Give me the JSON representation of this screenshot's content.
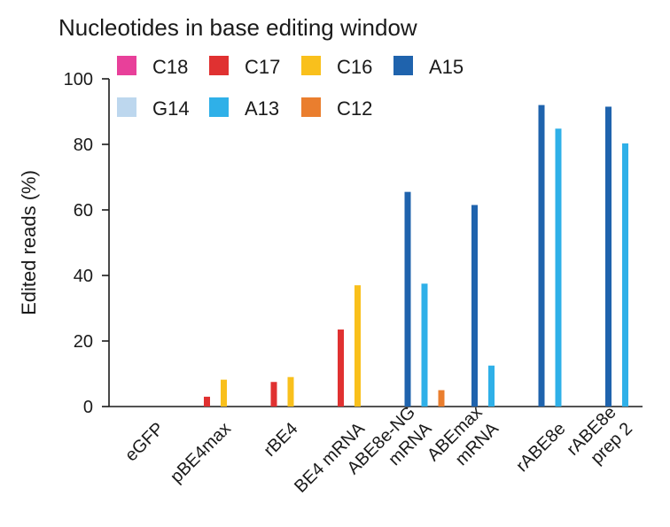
{
  "chart_data": {
    "type": "bar",
    "title": "Nucleotides in base editing window",
    "xlabel": "",
    "ylabel": "Edited reads (%)",
    "ylim": [
      0,
      100
    ],
    "yticks": [
      0,
      20,
      40,
      60,
      80,
      100
    ],
    "categories": [
      [
        "eGFP"
      ],
      [
        "pBE4max"
      ],
      [
        "rBE4"
      ],
      [
        "BE4 mRNA"
      ],
      [
        "ABE8e-NG",
        "mRNA"
      ],
      [
        "ABEmax",
        "mRNA"
      ],
      [
        "rABE8e"
      ],
      [
        "rABE8e",
        "prep 2"
      ]
    ],
    "legend_position": "top",
    "series": [
      {
        "name": "C18",
        "color": "#e8409a",
        "values": [
          0,
          0,
          0,
          0,
          0,
          0,
          0,
          0
        ]
      },
      {
        "name": "C17",
        "color": "#e03131",
        "values": [
          0,
          3,
          7.5,
          23.5,
          0,
          0,
          0,
          0
        ]
      },
      {
        "name": "C16",
        "color": "#f9c01c",
        "values": [
          0,
          8.2,
          9,
          37,
          0,
          0,
          0,
          0
        ]
      },
      {
        "name": "A15",
        "color": "#1f63ad",
        "values": [
          0,
          0,
          0,
          0,
          65.5,
          61.5,
          92,
          91.5
        ]
      },
      {
        "name": "G14",
        "color": "#bdd7ee",
        "values": [
          0,
          0,
          0,
          0,
          0,
          0,
          0,
          0
        ]
      },
      {
        "name": "A13",
        "color": "#2fb0e8",
        "values": [
          0,
          0,
          0,
          0,
          37.5,
          12.5,
          84.8,
          80.3
        ]
      },
      {
        "name": "C12",
        "color": "#ea7e2e",
        "values": [
          0,
          0,
          0,
          0,
          5,
          0,
          0,
          0
        ]
      }
    ]
  }
}
